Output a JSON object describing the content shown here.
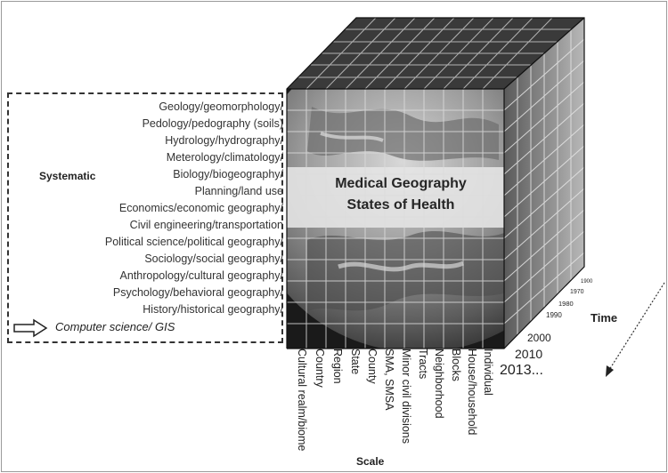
{
  "systematic_label": "Systematic",
  "topics": [
    "Geology/geomorphology/",
    "Pedology/pedography (soils)",
    "Hydrology/hydrography/",
    "Meterology/climatology/",
    "Biology/biogeography/",
    "Planning/land use",
    "Economics/economic geography/",
    "Civil engineering/transportation",
    "Political science/political geography/",
    "Sociology/social geography/",
    "Anthropology/cultural geography/",
    "Psychology/behavioral geography/",
    "History/historical geography/"
  ],
  "computer_science": "Computer science/ GIS",
  "cube_title_line1": "Medical Geography",
  "cube_title_line2": "States of Health",
  "time_label": "Time",
  "years": [
    "1900",
    "1970",
    "1980",
    "1990",
    "2000",
    "2010",
    "2013..."
  ],
  "scale_label": "Scale",
  "scale_items": [
    "Cultural realm/biome",
    "Country",
    "Region",
    "State",
    "County",
    "SMA, SMSA",
    "Minor civil divisions",
    "Tracts",
    "Neighborhood",
    "Blocks",
    "House/household",
    "Individual"
  ]
}
